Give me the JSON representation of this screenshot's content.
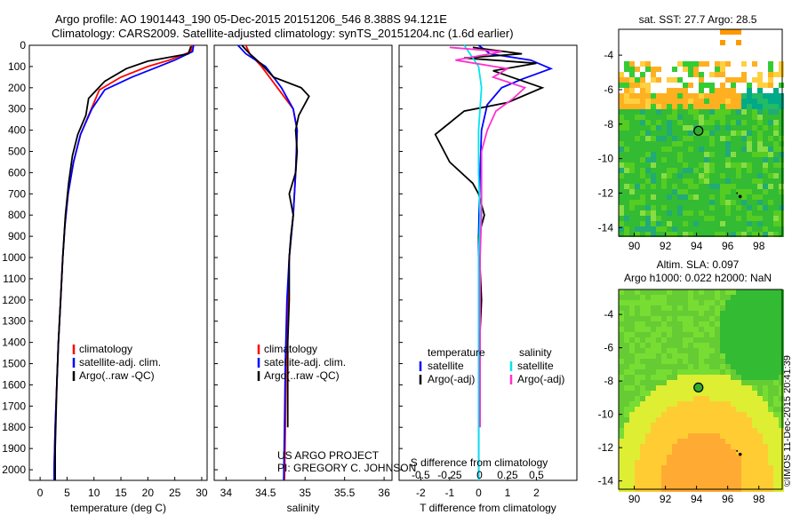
{
  "header": {
    "line1": "Argo profile: AO 1901443_190 05-Dec-2015 20151206_546 8.388S 94.121E",
    "line2": "Climatology: CARS2009. Satellite-adjusted climatology: synTS_20151204.nc (1.6d earlier)"
  },
  "side_label": "©IMOS 11-Dec-2015 20:41:39",
  "colors": {
    "climatology": "#ff0000",
    "satellite": "#0000ff",
    "argo": "#000000",
    "sat_salinity": "#00e5ee",
    "argo_salinity": "#ff33cc",
    "marker": "#33aa33"
  },
  "chart_data": [
    {
      "id": "temperature",
      "type": "line",
      "xlabel": "temperature (deg C)",
      "xlim": [
        -2,
        31
      ],
      "xticks": [
        "0",
        "5",
        "10",
        "15",
        "20",
        "25",
        "30"
      ],
      "xtick_values": [
        0,
        5,
        10,
        15,
        20,
        25,
        30
      ],
      "ylim": [
        2050,
        0
      ],
      "yticks": [
        "0",
        "100",
        "200",
        "300",
        "400",
        "500",
        "600",
        "700",
        "800",
        "900",
        "1000",
        "1100",
        "1200",
        "1300",
        "1400",
        "1500",
        "1600",
        "1700",
        "1800",
        "1900",
        "2000"
      ],
      "ytick_values": [
        0,
        100,
        200,
        300,
        400,
        500,
        600,
        700,
        800,
        900,
        1000,
        1100,
        1200,
        1300,
        1400,
        1500,
        1600,
        1700,
        1800,
        1900,
        2000
      ],
      "legend": [
        "climatology",
        "satellite-adj. clim.",
        "Argo(..raw -QC)"
      ],
      "series": [
        {
          "name": "climatology",
          "color": "#ff0000",
          "points": [
            [
              28.2,
              0
            ],
            [
              28,
              30
            ],
            [
              24,
              70
            ],
            [
              20,
              100
            ],
            [
              15,
              150
            ],
            [
              11,
              210
            ],
            [
              9.5,
              300
            ],
            [
              7.5,
              420
            ],
            [
              6.2,
              550
            ],
            [
              5.2,
              700
            ],
            [
              4.6,
              850
            ],
            [
              4.2,
              1000
            ],
            [
              3.8,
              1200
            ],
            [
              3.4,
              1400
            ],
            [
              3.1,
              1600
            ],
            [
              2.8,
              1800
            ],
            [
              2.6,
              2000
            ],
            [
              2.6,
              2050
            ]
          ]
        },
        {
          "name": "satellite-adj. clim.",
          "color": "#0000ff",
          "points": [
            [
              28.5,
              0
            ],
            [
              28.3,
              30
            ],
            [
              25,
              70
            ],
            [
              22,
              100
            ],
            [
              17,
              150
            ],
            [
              12,
              210
            ],
            [
              9.6,
              300
            ],
            [
              7.5,
              420
            ],
            [
              6.2,
              550
            ],
            [
              5.2,
              700
            ],
            [
              4.6,
              850
            ],
            [
              4.2,
              1000
            ],
            [
              3.8,
              1200
            ],
            [
              3.4,
              1400
            ],
            [
              3.1,
              1600
            ],
            [
              2.8,
              1800
            ],
            [
              2.6,
              2000
            ],
            [
              2.6,
              2050
            ]
          ]
        },
        {
          "name": "Argo(..raw -QC)",
          "color": "#000000",
          "points": [
            [
              28,
              5
            ],
            [
              27.5,
              40
            ],
            [
              20,
              75
            ],
            [
              16,
              110
            ],
            [
              12,
              170
            ],
            [
              9,
              250
            ],
            [
              8.5,
              330
            ],
            [
              7,
              420
            ],
            [
              6,
              520
            ],
            [
              5.3,
              650
            ],
            [
              4.7,
              800
            ],
            [
              4.2,
              1000
            ],
            [
              3.8,
              1200
            ],
            [
              3.4,
              1400
            ],
            [
              3.1,
              1600
            ],
            [
              2.9,
              1800
            ],
            [
              2.8,
              1900
            ],
            [
              2.8,
              2050
            ]
          ]
        }
      ]
    },
    {
      "id": "salinity",
      "type": "line",
      "xlabel": "salinity",
      "xlim": [
        33.85,
        36.1
      ],
      "xticks": [
        "34",
        "34.5",
        "35",
        "35.5",
        "36"
      ],
      "xtick_values": [
        34,
        34.5,
        35,
        35.5,
        36
      ],
      "ylim": [
        2050,
        0
      ],
      "legend": [
        "climatology",
        "satellite-adj. clim.",
        "Argo(..raw -QC)"
      ],
      "annotation": [
        "US ARGO PROJECT",
        "PI: GREGORY C. JOHNSON"
      ],
      "series": [
        {
          "name": "climatology",
          "color": "#ff0000",
          "points": [
            [
              34.25,
              0
            ],
            [
              34.3,
              40
            ],
            [
              34.45,
              100
            ],
            [
              34.65,
              200
            ],
            [
              34.85,
              300
            ],
            [
              34.9,
              400
            ],
            [
              34.88,
              600
            ],
            [
              34.85,
              800
            ],
            [
              34.8,
              1000
            ],
            [
              34.78,
              1200
            ],
            [
              34.76,
              1500
            ],
            [
              34.75,
              1800
            ],
            [
              34.74,
              2050
            ]
          ]
        },
        {
          "name": "satellite-adj. clim.",
          "color": "#0000ff",
          "points": [
            [
              34.15,
              0
            ],
            [
              34.25,
              40
            ],
            [
              34.5,
              100
            ],
            [
              34.7,
              200
            ],
            [
              34.85,
              300
            ],
            [
              34.9,
              400
            ],
            [
              34.88,
              600
            ],
            [
              34.85,
              800
            ],
            [
              34.8,
              1000
            ],
            [
              34.77,
              1200
            ],
            [
              34.75,
              1500
            ],
            [
              34.74,
              1800
            ],
            [
              34.73,
              2050
            ]
          ]
        },
        {
          "name": "Argo(..raw -QC)",
          "color": "#000000",
          "points": [
            [
              34.2,
              0
            ],
            [
              34.3,
              40
            ],
            [
              34.45,
              90
            ],
            [
              34.6,
              150
            ],
            [
              34.95,
              200
            ],
            [
              35.05,
              240
            ],
            [
              34.92,
              330
            ],
            [
              34.88,
              400
            ],
            [
              34.9,
              500
            ],
            [
              34.88,
              600
            ],
            [
              34.8,
              700
            ],
            [
              34.85,
              800
            ],
            [
              34.82,
              900
            ],
            [
              34.8,
              1000
            ],
            [
              34.8,
              1200
            ],
            [
              34.78,
              1400
            ],
            [
              34.78,
              1600
            ],
            [
              34.78,
              1800
            ]
          ]
        }
      ]
    },
    {
      "id": "difference",
      "type": "line",
      "xlabel": "T difference from climatology",
      "xlim": [
        -2.75,
        3.4
      ],
      "xticks": [
        "-2",
        "-1",
        "0",
        "1",
        "2"
      ],
      "xtick_values": [
        -2,
        -1,
        0,
        1,
        2
      ],
      "xlabel_top": "S difference from climatology",
      "xticks_top": [
        "-0.5",
        "-0.25",
        "0",
        "0.25",
        "0.5"
      ],
      "xtick_values_top": [
        -2,
        -1,
        0,
        1,
        2
      ],
      "ylim": [
        2050,
        0
      ],
      "legend_temperature": [
        "temperature",
        "satellite",
        "Argo(-adj)"
      ],
      "legend_salinity": [
        "salinity",
        "satellite",
        "Argo(-adj)"
      ],
      "series": [
        {
          "name": "satellite",
          "group": "temperature",
          "color": "#0000ff",
          "points": [
            [
              0,
              0
            ],
            [
              0.4,
              40
            ],
            [
              1.8,
              70
            ],
            [
              2.5,
              110
            ],
            [
              1.5,
              160
            ],
            [
              0.8,
              200
            ],
            [
              0.3,
              280
            ],
            [
              0.1,
              400
            ],
            [
              0.05,
              600
            ],
            [
              0,
              900
            ],
            [
              0,
              1200
            ],
            [
              0,
              2050
            ]
          ]
        },
        {
          "name": "Argo(-adj)",
          "group": "temperature",
          "color": "#000000",
          "points": [
            [
              -0.2,
              10
            ],
            [
              1.5,
              40
            ],
            [
              -0.5,
              60
            ],
            [
              2,
              85
            ],
            [
              0.5,
              120
            ],
            [
              2.2,
              200
            ],
            [
              1,
              270
            ],
            [
              -0.5,
              310
            ],
            [
              -1.5,
              420
            ],
            [
              -1,
              550
            ],
            [
              -0.2,
              650
            ],
            [
              0,
              700
            ],
            [
              0.2,
              800
            ],
            [
              0,
              900
            ],
            [
              0.1,
              1200
            ],
            [
              0,
              1500
            ],
            [
              0,
              1800
            ]
          ]
        },
        {
          "name": "satellite",
          "group": "salinity",
          "color": "#00e5ee",
          "points": [
            [
              -0.5,
              0
            ],
            [
              -0.2,
              60
            ],
            [
              0,
              100
            ],
            [
              0.1,
              200
            ],
            [
              0,
              400
            ],
            [
              0,
              600
            ],
            [
              0.05,
              800
            ],
            [
              0,
              1000
            ],
            [
              0,
              1500
            ],
            [
              0,
              2050
            ]
          ]
        },
        {
          "name": "Argo(-adj)",
          "group": "salinity",
          "color": "#ff33cc",
          "points": [
            [
              -1,
              10
            ],
            [
              0.8,
              30
            ],
            [
              -0.8,
              70
            ],
            [
              1,
              110
            ],
            [
              0.5,
              150
            ],
            [
              1.6,
              200
            ],
            [
              1.2,
              250
            ],
            [
              0.6,
              310
            ],
            [
              0.3,
              400
            ],
            [
              0.1,
              500
            ],
            [
              0.1,
              700
            ],
            [
              0.1,
              800
            ],
            [
              0.05,
              1000
            ],
            [
              0.05,
              1400
            ],
            [
              0.05,
              1800
            ]
          ]
        }
      ]
    },
    {
      "id": "sst-map",
      "type": "heatmap",
      "title": "sat. SST: 27.7 Argo: 28.5",
      "xlim": [
        89,
        99.5
      ],
      "ylim": [
        -14.5,
        -2.5
      ],
      "xticks": [
        "90",
        "92",
        "94",
        "96",
        "98"
      ],
      "xtick_values": [
        90,
        92,
        94,
        96,
        98
      ],
      "yticks": [
        "-4",
        "-6",
        "-8",
        "-10",
        "-12",
        "-14"
      ],
      "ytick_values": [
        -4,
        -6,
        -8,
        -10,
        -12,
        -14
      ],
      "profile_position": [
        94.121,
        -8.388
      ],
      "track": [
        [
          96.8,
          -12.2
        ],
        [
          96.6,
          -12.0
        ]
      ]
    },
    {
      "id": "sla-map",
      "type": "heatmap",
      "title": "Altim. SLA: 0.097",
      "subtitle": "Argo h1000: 0.022 h2000: NaN",
      "xlim": [
        89,
        99.5
      ],
      "ylim": [
        -14.5,
        -2.5
      ],
      "xticks": [
        "90",
        "92",
        "94",
        "96",
        "98"
      ],
      "xtick_values": [
        90,
        92,
        94,
        96,
        98
      ],
      "yticks": [
        "-4",
        "-6",
        "-8",
        "-10",
        "-12",
        "-14"
      ],
      "ytick_values": [
        -4,
        -6,
        -8,
        -10,
        -12,
        -14
      ],
      "profile_position": [
        94.121,
        -8.388
      ],
      "track": [
        [
          96.8,
          -12.4
        ],
        [
          96.6,
          -12.2
        ]
      ]
    }
  ]
}
